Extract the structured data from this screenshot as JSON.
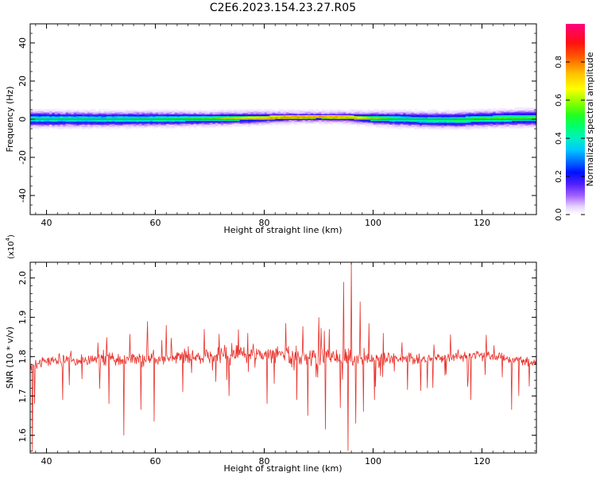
{
  "title": "C2E6.2023.154.23.27.R05",
  "colors": {
    "snr_line": "#e8312a",
    "axis": "#000000"
  },
  "chart_data": [
    {
      "type": "heatmap",
      "xlabel": "Height of straight line (km)",
      "ylabel": "Frequency (Hz)",
      "xlim": [
        37,
        130
      ],
      "ylim": [
        -50,
        50
      ],
      "xticks": [
        40,
        60,
        80,
        100,
        120
      ],
      "yticks": [
        -40,
        -20,
        0,
        20,
        40
      ],
      "band": {
        "center_hz": 0,
        "ridge": [
          [
            37,
            0.3
          ],
          [
            50,
            0.1
          ],
          [
            60,
            0.2
          ],
          [
            70,
            0.4
          ],
          [
            80,
            0.9
          ],
          [
            85,
            1.2
          ],
          [
            90,
            1.3
          ],
          [
            95,
            1.2
          ],
          [
            100,
            0.6
          ],
          [
            105,
            0.2
          ],
          [
            110,
            -0.2
          ],
          [
            115,
            -0.3
          ],
          [
            120,
            0.3
          ],
          [
            125,
            0.6
          ],
          [
            130,
            0.8
          ]
        ],
        "half_width": [
          [
            37,
            2.8
          ],
          [
            50,
            2.6
          ],
          [
            60,
            2.5
          ],
          [
            70,
            2.3
          ],
          [
            78,
            2.1
          ],
          [
            85,
            1.6
          ],
          [
            90,
            1.4
          ],
          [
            95,
            1.6
          ],
          [
            100,
            2.2
          ],
          [
            105,
            2.6
          ],
          [
            115,
            2.8
          ],
          [
            130,
            3.0
          ]
        ],
        "peak_amplitude": [
          [
            37,
            0.45
          ],
          [
            50,
            0.45
          ],
          [
            60,
            0.48
          ],
          [
            70,
            0.55
          ],
          [
            76,
            0.7
          ],
          [
            80,
            0.78
          ],
          [
            85,
            0.85
          ],
          [
            90,
            0.88
          ],
          [
            95,
            0.84
          ],
          [
            100,
            0.62
          ],
          [
            105,
            0.46
          ],
          [
            115,
            0.5
          ],
          [
            120,
            0.55
          ],
          [
            130,
            0.55
          ]
        ]
      },
      "colorbar": {
        "label": "Normalized spectral amplitude",
        "ticks": [
          "0.0",
          "0.2",
          "0.4",
          "0.6",
          "0.8"
        ],
        "range": [
          0,
          1
        ]
      }
    },
    {
      "type": "line",
      "xlabel": "Height of straight line (km)",
      "ylabel": "SNR (10 * v/v)",
      "scale_label": "(x10",
      "scale_exp": "4",
      "scale_close": ")",
      "xlim": [
        37,
        130
      ],
      "ylim": [
        1.555,
        2.04
      ],
      "xticks": [
        40,
        60,
        80,
        100,
        120
      ],
      "yticks": [
        "1.6",
        "1.7",
        "1.8",
        "1.9",
        "2.0"
      ],
      "series": [
        {
          "x_range": [
            37,
            130
          ],
          "points": 920,
          "baseline": [
            [
              37,
              1.775
            ],
            [
              40,
              1.79
            ],
            [
              60,
              1.795
            ],
            [
              70,
              1.8
            ],
            [
              80,
              1.805
            ],
            [
              90,
              1.8
            ],
            [
              100,
              1.795
            ],
            [
              110,
              1.795
            ],
            [
              120,
              1.805
            ],
            [
              130,
              1.785
            ]
          ],
          "noise_std": [
            [
              37,
              0.012
            ],
            [
              70,
              0.018
            ],
            [
              88,
              0.022
            ],
            [
              100,
              0.016
            ],
            [
              110,
              0.012
            ],
            [
              130,
              0.009
            ]
          ],
          "features": [
            {
              "x": 37.4,
              "y": 1.56
            },
            {
              "x": 37.8,
              "y": 1.68
            },
            {
              "x": 43.0,
              "y": 1.69
            },
            {
              "x": 51.5,
              "y": 1.68
            },
            {
              "x": 54.2,
              "y": 1.6
            },
            {
              "x": 57.3,
              "y": 1.665
            },
            {
              "x": 58.6,
              "y": 1.89
            },
            {
              "x": 59.8,
              "y": 1.635
            },
            {
              "x": 62.0,
              "y": 1.88
            },
            {
              "x": 65.0,
              "y": 1.71
            },
            {
              "x": 69.0,
              "y": 1.87
            },
            {
              "x": 73.5,
              "y": 1.7
            },
            {
              "x": 77.0,
              "y": 1.86
            },
            {
              "x": 80.5,
              "y": 1.68
            },
            {
              "x": 84.0,
              "y": 1.885
            },
            {
              "x": 86.0,
              "y": 1.69
            },
            {
              "x": 88.0,
              "y": 1.65
            },
            {
              "x": 90.0,
              "y": 1.9
            },
            {
              "x": 91.2,
              "y": 1.615
            },
            {
              "x": 92.0,
              "y": 1.87
            },
            {
              "x": 94.0,
              "y": 1.67
            },
            {
              "x": 94.6,
              "y": 1.99
            },
            {
              "x": 95.4,
              "y": 1.56
            },
            {
              "x": 96.0,
              "y": 2.04
            },
            {
              "x": 96.8,
              "y": 1.63
            },
            {
              "x": 97.6,
              "y": 1.94
            },
            {
              "x": 98.2,
              "y": 1.66
            },
            {
              "x": 99.2,
              "y": 1.885
            },
            {
              "x": 100.2,
              "y": 1.69
            },
            {
              "x": 110.0,
              "y": 1.72
            },
            {
              "x": 118.0,
              "y": 1.69
            },
            {
              "x": 125.4,
              "y": 1.665
            },
            {
              "x": 126.8,
              "y": 1.7
            }
          ]
        }
      ]
    }
  ]
}
